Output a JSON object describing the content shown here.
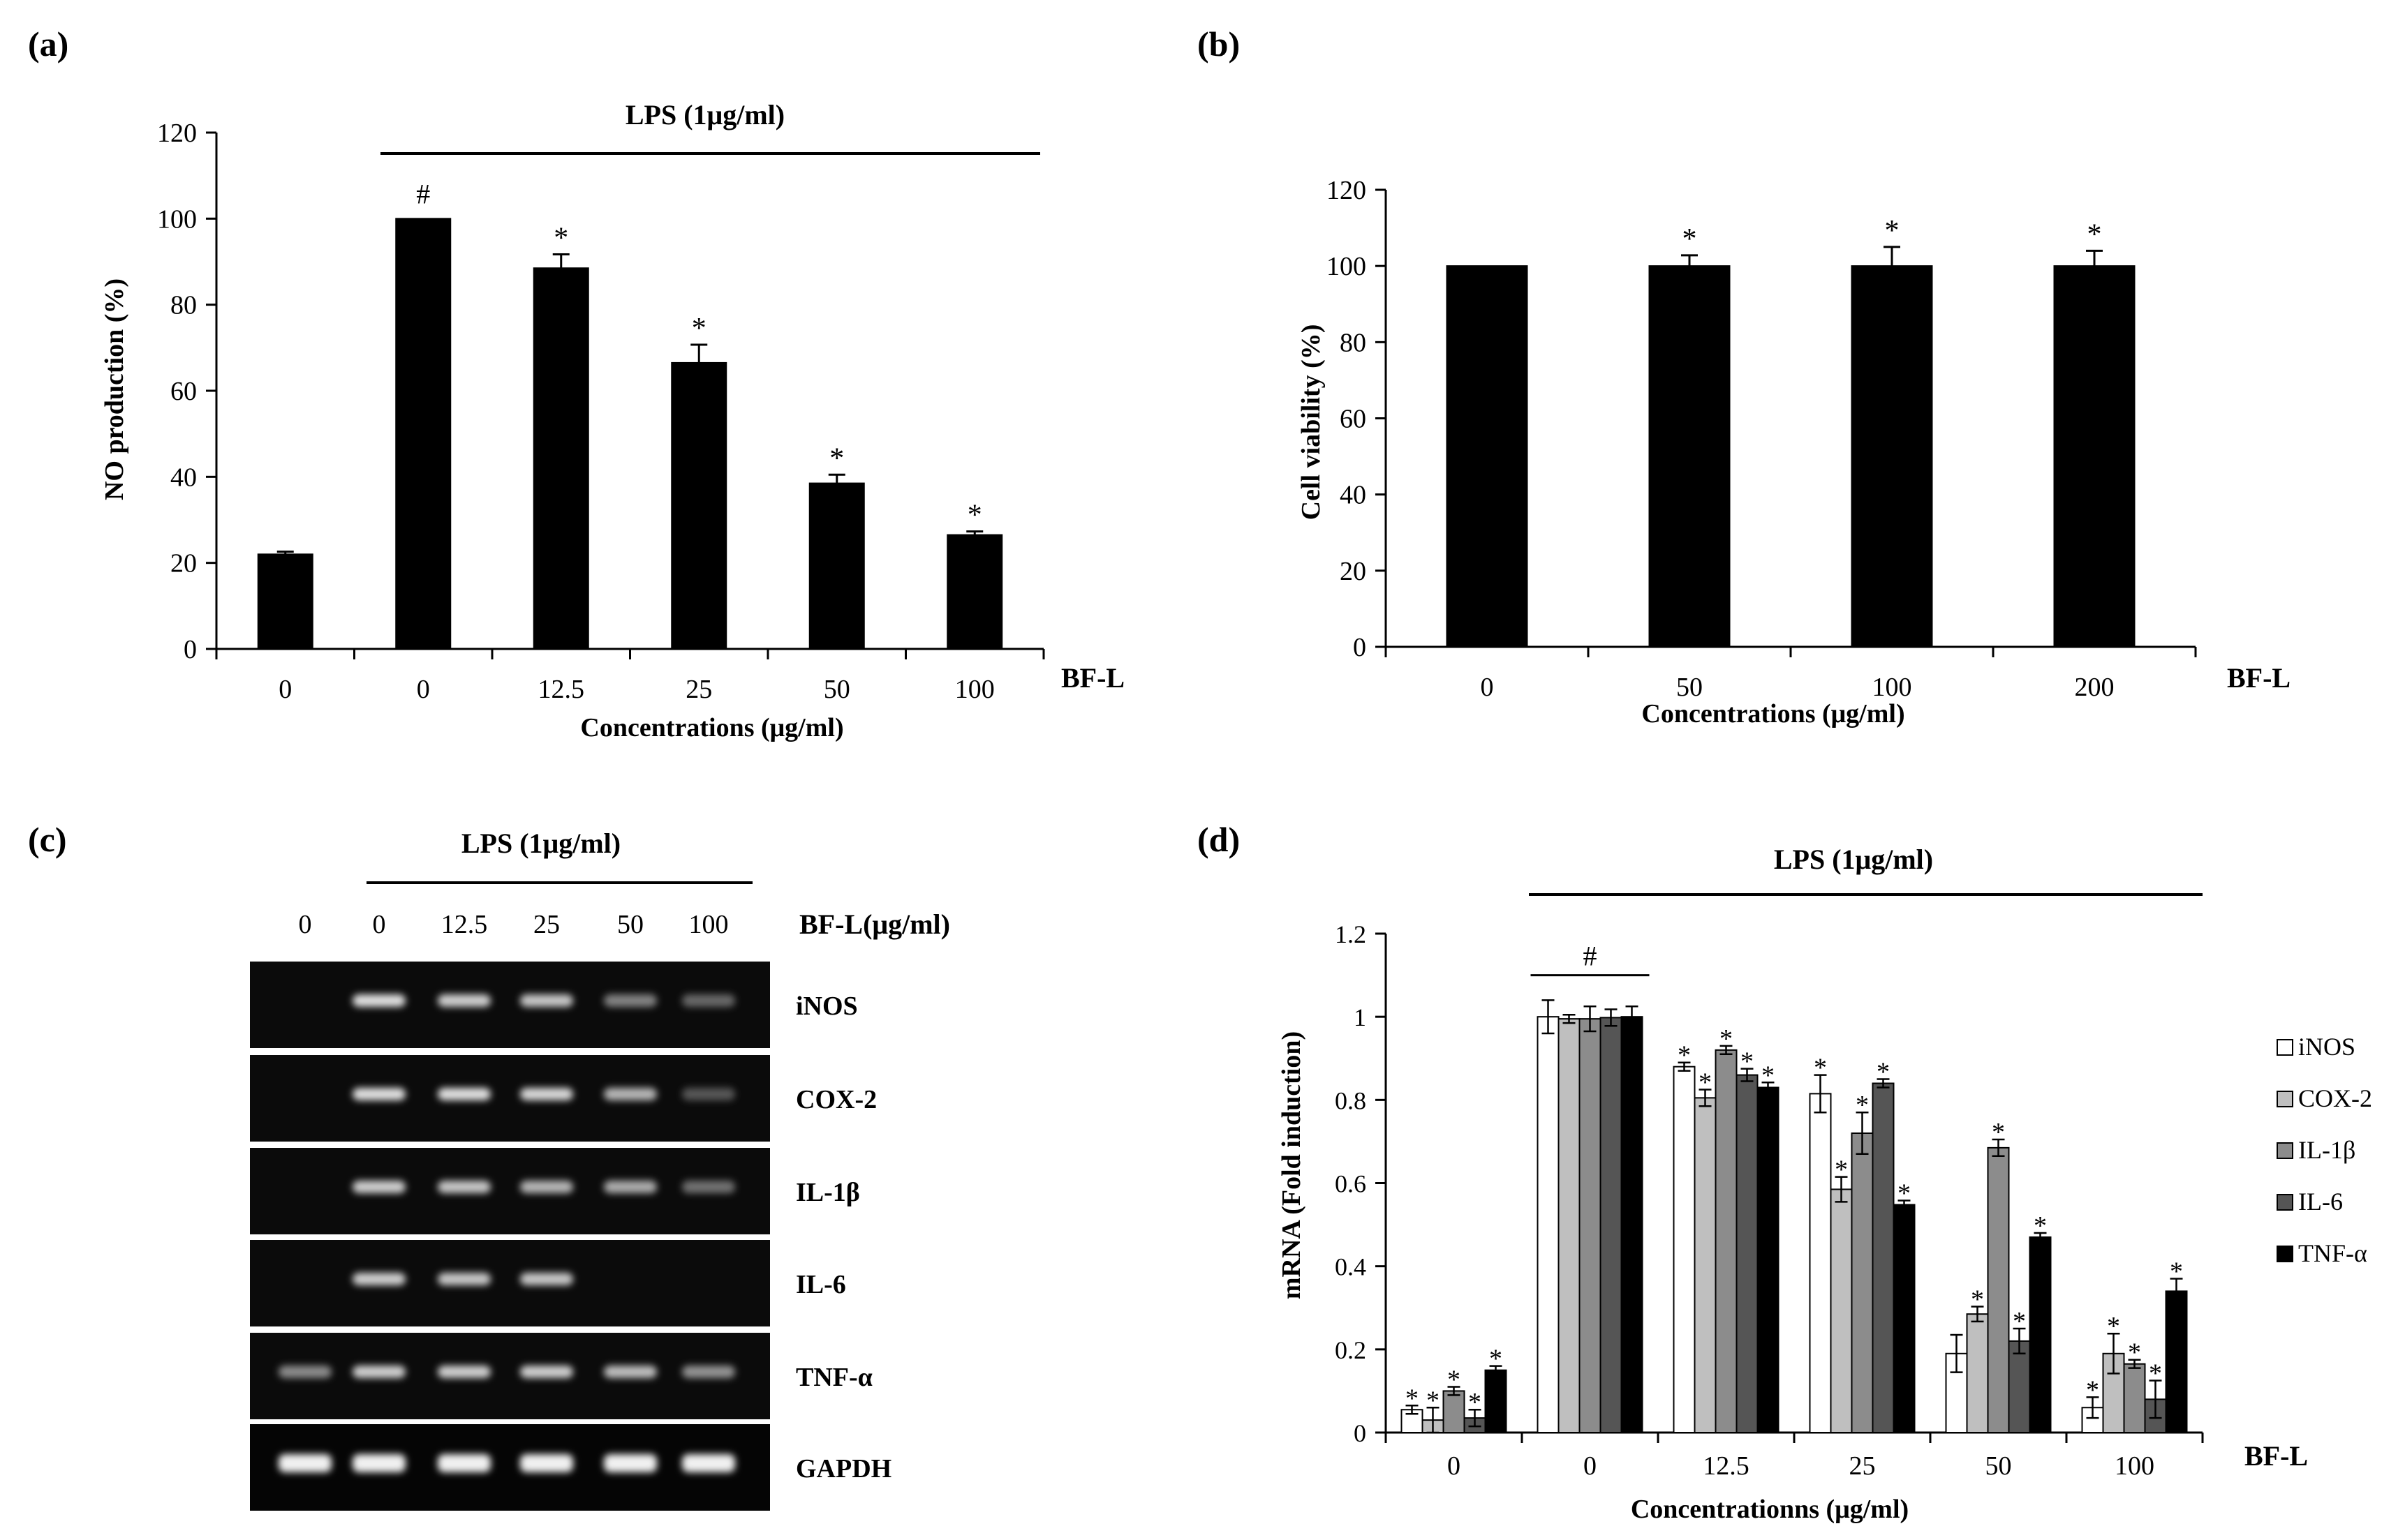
{
  "panels": {
    "a": "(a)",
    "b": "(b)",
    "c": "(c)",
    "d": "(d)"
  },
  "chart_data": [
    {
      "id": "a",
      "type": "bar",
      "title": "",
      "treatment_label": "LPS (1μg/ml)",
      "xlabel": "Concentrations (μg/ml)",
      "ylabel": "NO production (%)",
      "group_label": "BF-L",
      "ylim": [
        0,
        120
      ],
      "yticks": [
        0,
        20,
        40,
        60,
        80,
        100,
        120
      ],
      "categories": [
        "0",
        "0",
        "12.5",
        "25",
        "50",
        "100"
      ],
      "values": [
        22,
        100,
        88.5,
        66.5,
        38.5,
        26.5
      ],
      "errors": [
        0.6,
        0,
        3.2,
        4.2,
        2.0,
        0.8
      ],
      "marks": [
        "",
        "#",
        "*",
        "*",
        "*",
        "*"
      ],
      "color": "#000000"
    },
    {
      "id": "b",
      "type": "bar",
      "title": "",
      "xlabel": "Concentrations (μg/ml)",
      "ylabel": "Cell viability (%)",
      "group_label": "BF-L",
      "ylim": [
        0,
        120
      ],
      "yticks": [
        0,
        20,
        40,
        60,
        80,
        100,
        120
      ],
      "categories": [
        "0",
        "50",
        "100",
        "200"
      ],
      "values": [
        100,
        100,
        100,
        100
      ],
      "errors": [
        0,
        2.8,
        5.0,
        4.0
      ],
      "marks": [
        "",
        "*",
        "*",
        "*"
      ],
      "color": "#000000"
    },
    {
      "id": "d",
      "type": "bar",
      "title": "",
      "treatment_label": "LPS (1μg/ml)",
      "xlabel": "Concentrationns (μg/ml)",
      "ylabel": "mRNA (Fold induction)",
      "group_label": "BF-L",
      "ylim": [
        0,
        1.2
      ],
      "yticks": [
        "0",
        "0.2",
        "0.4",
        "0.6",
        "0.8",
        "1",
        "1.2"
      ],
      "categories": [
        "0",
        "0",
        "12.5",
        "25",
        "50",
        "100"
      ],
      "group_mark": "#",
      "legend_position": "right",
      "series": [
        {
          "name": "iNOS",
          "color": "#ffffff",
          "values": [
            0.055,
            1.0,
            0.88,
            0.815,
            0.19,
            0.06
          ],
          "errors": [
            0.01,
            0.04,
            0.01,
            0.045,
            0.045,
            0.025
          ],
          "marks": [
            "*",
            "",
            "*",
            "*",
            "",
            "*"
          ]
        },
        {
          "name": "COX-2",
          "color": "#bfbfbf",
          "values": [
            0.03,
            0.995,
            0.805,
            0.585,
            0.285,
            0.19
          ],
          "errors": [
            0.03,
            0.01,
            0.02,
            0.03,
            0.018,
            0.048
          ],
          "marks": [
            "*",
            "",
            "*",
            "*",
            "*",
            "*"
          ]
        },
        {
          "name": "IL-1β",
          "color": "#8c8c8c",
          "values": [
            0.1,
            0.995,
            0.92,
            0.72,
            0.685,
            0.165
          ],
          "errors": [
            0.01,
            0.03,
            0.01,
            0.05,
            0.02,
            0.01
          ],
          "marks": [
            "*",
            "",
            "*",
            "*",
            "*",
            "*"
          ]
        },
        {
          "name": "IL-6",
          "color": "#555555",
          "values": [
            0.035,
            0.998,
            0.86,
            0.84,
            0.22,
            0.08
          ],
          "errors": [
            0.02,
            0.02,
            0.015,
            0.01,
            0.03,
            0.045
          ],
          "marks": [
            "*",
            "",
            "*",
            "*",
            "*",
            "*"
          ]
        },
        {
          "name": "TNF-α",
          "color": "#000000",
          "values": [
            0.15,
            1.0,
            0.83,
            0.548,
            0.47,
            0.34
          ],
          "errors": [
            0.01,
            0.025,
            0.012,
            0.01,
            0.01,
            0.03
          ],
          "marks": [
            "*",
            "",
            "*",
            "*",
            "*",
            "*"
          ]
        }
      ]
    }
  ],
  "gel": {
    "treatment_label": "LPS (1μg/ml)",
    "lanes": [
      "0",
      "0",
      "12.5",
      "25",
      "50",
      "100"
    ],
    "column_label": "BF-L(μg/ml)",
    "rows": [
      {
        "name": "iNOS",
        "intensity": [
          0,
          0.9,
          0.8,
          0.75,
          0.35,
          0.2
        ]
      },
      {
        "name": "COX-2",
        "intensity": [
          0,
          0.9,
          0.9,
          0.85,
          0.65,
          0.1
        ]
      },
      {
        "name": "IL-1β",
        "intensity": [
          0,
          0.8,
          0.75,
          0.65,
          0.6,
          0.25
        ]
      },
      {
        "name": "IL-6",
        "intensity": [
          0,
          0.8,
          0.75,
          0.75,
          0,
          0
        ]
      },
      {
        "name": "TNF-α",
        "intensity": [
          0.4,
          0.8,
          0.8,
          0.8,
          0.7,
          0.45
        ]
      },
      {
        "name": "GAPDH",
        "intensity": [
          1,
          1,
          1,
          1,
          1,
          1
        ]
      }
    ]
  }
}
